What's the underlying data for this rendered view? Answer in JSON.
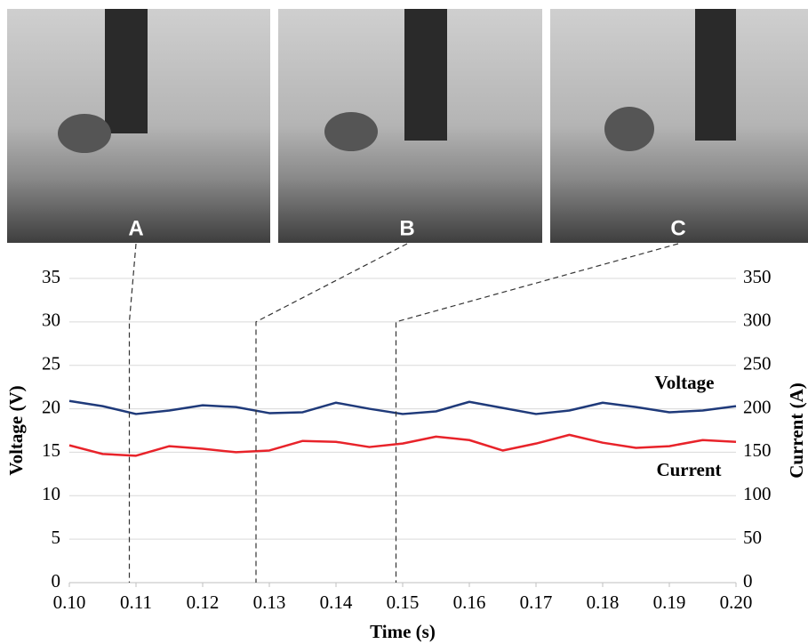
{
  "chart_data": {
    "type": "line",
    "xlabel": "Time (s)",
    "ylabel": "Voltage (V)",
    "y2label": "Current (A)",
    "x": [
      0.1,
      0.105,
      0.11,
      0.115,
      0.12,
      0.125,
      0.13,
      0.135,
      0.14,
      0.145,
      0.15,
      0.155,
      0.16,
      0.165,
      0.17,
      0.175,
      0.18,
      0.185,
      0.19,
      0.195,
      0.2
    ],
    "series": [
      {
        "name": "Voltage",
        "color": "#1f3a7a",
        "values": [
          20.9,
          20.3,
          19.4,
          19.8,
          20.4,
          20.2,
          19.5,
          19.6,
          20.7,
          20.0,
          19.4,
          19.7,
          20.8,
          20.1,
          19.4,
          19.8,
          20.7,
          20.2,
          19.6,
          19.8,
          20.3
        ]
      },
      {
        "name": "Current",
        "color": "#e8232a",
        "axis": "y2",
        "values": [
          158,
          148,
          146,
          157,
          154,
          150,
          152,
          163,
          162,
          156,
          160,
          168,
          164,
          152,
          160,
          170,
          161,
          155,
          157,
          164,
          162
        ]
      }
    ],
    "xlim": [
      0.1,
      0.2
    ],
    "xticks": [
      {
        "value": 0.1,
        "label": "0.10"
      },
      {
        "value": 0.11,
        "label": "0.11"
      },
      {
        "value": 0.12,
        "label": "0.12"
      },
      {
        "value": 0.13,
        "label": "0.13"
      },
      {
        "value": 0.14,
        "label": "0.14"
      },
      {
        "value": 0.15,
        "label": "0.15"
      },
      {
        "value": 0.16,
        "label": "0.16"
      },
      {
        "value": 0.17,
        "label": "0.17"
      },
      {
        "value": 0.18,
        "label": "0.18"
      },
      {
        "value": 0.19,
        "label": "0.19"
      },
      {
        "value": 0.2,
        "label": "0.20"
      }
    ],
    "ylim": [
      0,
      35
    ],
    "yticks": [
      0,
      5,
      10,
      15,
      20,
      25,
      30,
      35
    ],
    "y2lim": [
      0,
      350
    ],
    "y2ticks": [
      0,
      50,
      100,
      150,
      200,
      250,
      300,
      350
    ],
    "grid": true,
    "annotations": [
      {
        "label": "A",
        "x": 0.109
      },
      {
        "label": "B",
        "x": 0.128
      },
      {
        "label": "C",
        "x": 0.149
      }
    ]
  }
}
